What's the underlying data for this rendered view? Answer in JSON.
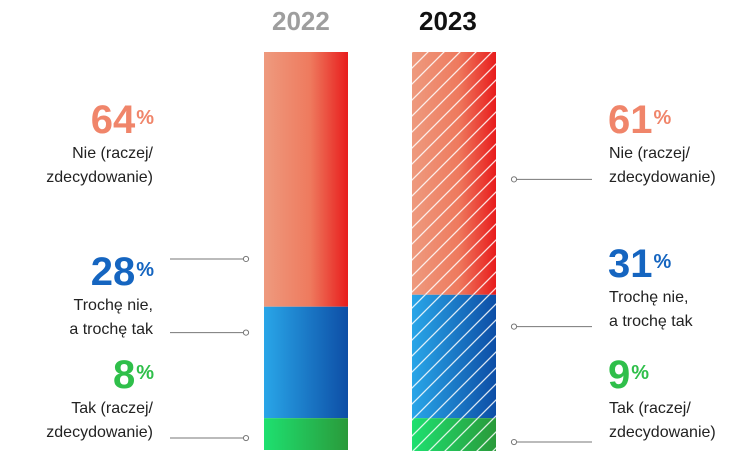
{
  "colors": {
    "nie": "#f0856a",
    "troche": "#1565c0",
    "tak": "#2fbf4a",
    "year_2022": "#9e9e9e",
    "year_2023": "#111111",
    "connector": "#777777"
  },
  "chart_data": {
    "type": "bar",
    "stacked": true,
    "categories": [
      "2022",
      "2023"
    ],
    "series": [
      {
        "name": "Nie (raczej/ zdecydowanie)",
        "values": [
          64,
          61
        ]
      },
      {
        "name": "Trochę nie, a trochę tak",
        "values": [
          28,
          31
        ]
      },
      {
        "name": "Tak (raczej/ zdecydowanie)",
        "values": [
          8,
          9
        ]
      }
    ],
    "ylim": [
      0,
      100
    ],
    "legend_position": "side labels",
    "labels": {
      "2022": {
        "nie": {
          "value": "64",
          "sign": "%",
          "line1": "Nie (raczej/",
          "line2": "zdecydowanie)"
        },
        "troche": {
          "value": "28",
          "sign": "%",
          "line1": "Trochę nie,",
          "line2": "a trochę tak"
        },
        "tak": {
          "value": "8",
          "sign": "%",
          "line1": "Tak (raczej/",
          "line2": "zdecydowanie)"
        }
      },
      "2023": {
        "nie": {
          "value": "61",
          "sign": "%",
          "line1": "Nie (raczej/",
          "line2": "zdecydowanie)"
        },
        "troche": {
          "value": "31",
          "sign": "%",
          "line1": "Trochę nie,",
          "line2": "a trochę tak"
        },
        "tak": {
          "value": "9",
          "sign": "%",
          "line1": "Tak (raczej/",
          "line2": "zdecydowanie)"
        }
      }
    }
  }
}
